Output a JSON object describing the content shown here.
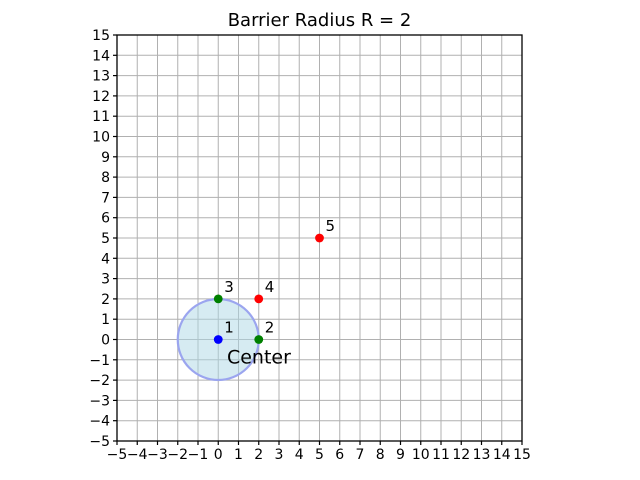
{
  "figure": {
    "background": "#ffffff"
  },
  "chart_data": {
    "type": "scatter",
    "title": "Barrier Radius R = 2",
    "xlabel": "",
    "ylabel": "",
    "xlim": [
      -5,
      15
    ],
    "ylim": [
      -5,
      15
    ],
    "grid": true,
    "grid_color": "#b0b0b0",
    "axis_color": "#000000",
    "legend_position": "none",
    "xtick_values": [
      -5,
      -4,
      -3,
      -2,
      -1,
      0,
      1,
      2,
      3,
      4,
      5,
      6,
      7,
      8,
      9,
      10,
      11,
      12,
      13,
      14,
      15
    ],
    "xtick_labels": [
      "−5",
      "−4",
      "−3",
      "−2",
      "−1",
      "0",
      "1",
      "2",
      "3",
      "4",
      "5",
      "6",
      "7",
      "8",
      "9",
      "10",
      "11",
      "12",
      "13",
      "14",
      "15"
    ],
    "ytick_values": [
      -5,
      -4,
      -3,
      -2,
      -1,
      0,
      1,
      2,
      3,
      4,
      5,
      6,
      7,
      8,
      9,
      10,
      11,
      12,
      13,
      14,
      15
    ],
    "ytick_labels": [
      "−5",
      "−4",
      "−3",
      "−2",
      "−1",
      "0",
      "1",
      "2",
      "3",
      "4",
      "5",
      "6",
      "7",
      "8",
      "9",
      "10",
      "11",
      "12",
      "13",
      "14",
      "15"
    ],
    "barrier_circle": {
      "cx": 0,
      "cy": 0,
      "radius": 2,
      "fill": "#add8e6",
      "fill_opacity": 0.5,
      "stroke": "#9ba5ef",
      "stroke_width": 2.2
    },
    "points": [
      {
        "label": "1",
        "x": 0,
        "y": 0,
        "marker_color": "#0000ff",
        "label_color": "#008000"
      },
      {
        "label": "2",
        "x": 2,
        "y": 0,
        "marker_color": "#008000",
        "label_color": "#008000"
      },
      {
        "label": "3",
        "x": 0,
        "y": 2,
        "marker_color": "#008000",
        "label_color": "#008000"
      },
      {
        "label": "4",
        "x": 2,
        "y": 2,
        "marker_color": "#ff0000",
        "label_color": "#ff0000"
      },
      {
        "label": "5",
        "x": 5,
        "y": 5,
        "marker_color": "#ff0000",
        "label_color": "#ff0000"
      }
    ],
    "annotations": [
      {
        "text": "Center",
        "x": 0.43,
        "y": -0.89,
        "color": "#0000ff",
        "font_size": 19,
        "anchor": "start"
      }
    ]
  }
}
